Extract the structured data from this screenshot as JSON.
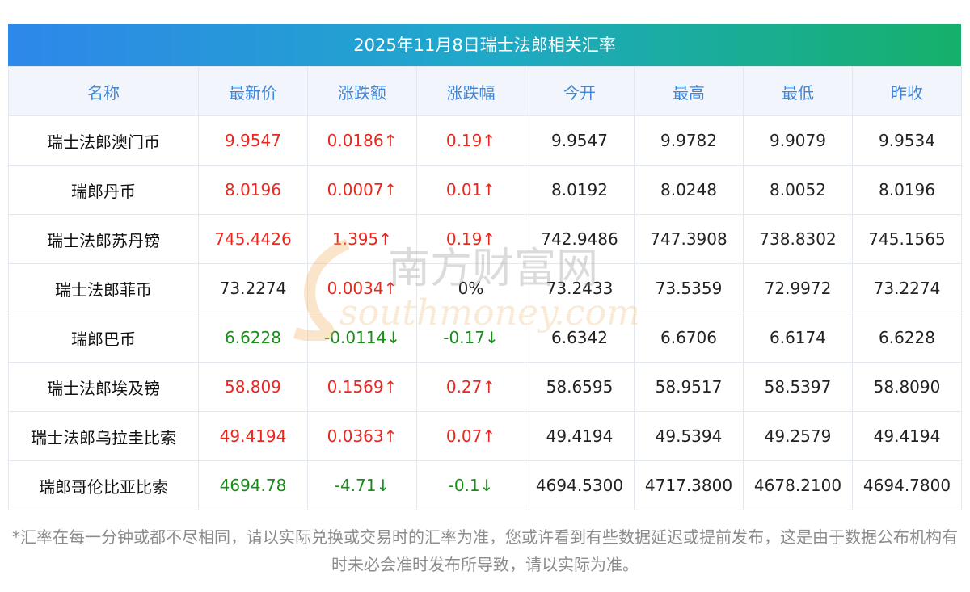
{
  "title": "2025年11月8日瑞士法郎相关汇率",
  "columns": [
    "名称",
    "最新价",
    "涨跌额",
    "涨跌幅",
    "今开",
    "最高",
    "最低",
    "昨收"
  ],
  "rows": [
    {
      "name": "瑞士法郎澳门币",
      "latest": "9.9547",
      "change": "0.0186↑",
      "pct": "0.19↑",
      "open": "9.9547",
      "high": "9.9782",
      "low": "9.9079",
      "prev": "9.9534",
      "dir": "up"
    },
    {
      "name": "瑞郎丹币",
      "latest": "8.0196",
      "change": "0.0007↑",
      "pct": "0.01↑",
      "open": "8.0192",
      "high": "8.0248",
      "low": "8.0052",
      "prev": "8.0196",
      "dir": "up"
    },
    {
      "name": "瑞士法郎苏丹镑",
      "latest": "745.4426",
      "change": "1.395↑",
      "pct": "0.19↑",
      "open": "742.9486",
      "high": "747.3908",
      "low": "738.8302",
      "prev": "745.1565",
      "dir": "up"
    },
    {
      "name": "瑞士法郎菲币",
      "latest": "73.2274",
      "change": "0.0034↑",
      "pct": "0%",
      "open": "73.2433",
      "high": "73.5359",
      "low": "72.9972",
      "prev": "73.2274",
      "dir": "flat-up"
    },
    {
      "name": "瑞郎巴币",
      "latest": "6.6228",
      "change": "-0.0114↓",
      "pct": "-0.17↓",
      "open": "6.6342",
      "high": "6.6706",
      "low": "6.6174",
      "prev": "6.6228",
      "dir": "down"
    },
    {
      "name": "瑞士法郎埃及镑",
      "latest": "58.809",
      "change": "0.1569↑",
      "pct": "0.27↑",
      "open": "58.6595",
      "high": "58.9517",
      "low": "58.5397",
      "prev": "58.8090",
      "dir": "up"
    },
    {
      "name": "瑞士法郎乌拉圭比索",
      "latest": "49.4194",
      "change": "0.0363↑",
      "pct": "0.07↑",
      "open": "49.4194",
      "high": "49.5394",
      "low": "49.2579",
      "prev": "49.4194",
      "dir": "up"
    },
    {
      "name": "瑞郎哥伦比亚比索",
      "latest": "4694.78",
      "change": "-4.71↓",
      "pct": "-0.1↓",
      "open": "4694.5300",
      "high": "4717.3800",
      "low": "4678.2100",
      "prev": "4694.7800",
      "dir": "down"
    }
  ],
  "footnote": "*汇率在每一分钟或都不尽相同，请以实际兑换或交易时的汇率为准，您或许看到有些数据延迟或提前发布，这是由于数据公布机构有时未必会准时发布所导致，请以实际为准。",
  "watermark": {
    "cn": "南方财富网",
    "en": "southmoney.com"
  },
  "colors": {
    "up": "#e8281e",
    "down": "#1a8c1a",
    "header_text": "#3f86d8",
    "title_gradient": [
      "#2e87ea",
      "#16b06a"
    ]
  }
}
